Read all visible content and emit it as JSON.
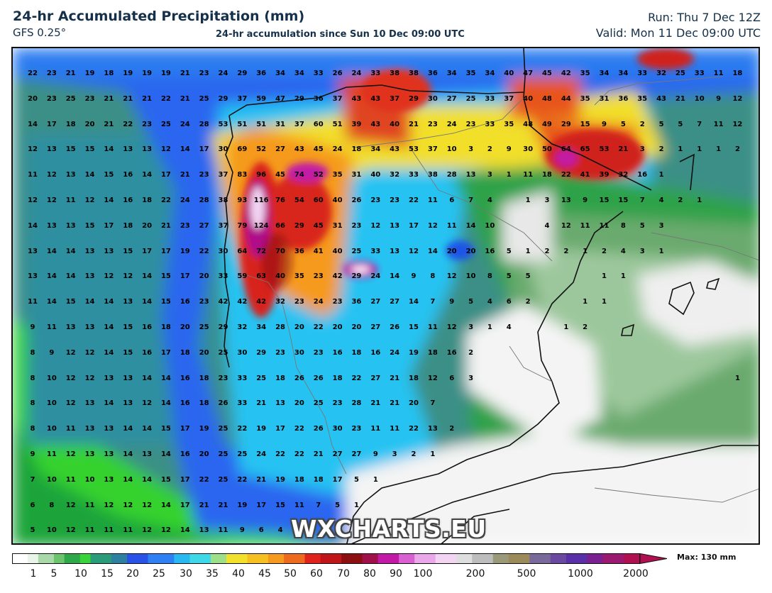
{
  "header": {
    "title": "24-hr Accumulated Precipitation (mm)",
    "model": "GFS 0.25°",
    "subtitle": "24-hr accumulation since Sun 10 Dec 09:00 UTC",
    "run": "Run: Thu 7 Dec 12Z",
    "valid": "Valid: Mon 11 Dec 09:00 UTC"
  },
  "watermark": "WXCHARTS.EU",
  "legend": {
    "ticks": [
      "1",
      "5",
      "10",
      "15",
      "20",
      "25",
      "30",
      "35",
      "40",
      "45",
      "50",
      "60",
      "70",
      "80",
      "90",
      "100",
      "200",
      "500",
      "1000",
      "2000"
    ],
    "max_label": "Max: 130 mm"
  },
  "colors": {
    "sea_low": "#1b9e43",
    "sea_green": "#3fdc2f",
    "teal": "#3b8c8a",
    "blue": "#2b6cf0",
    "cyan": "#27c2f5",
    "yellow": "#f2e12b",
    "orange": "#f59a1f",
    "red": "#e0231c",
    "darkred": "#8c0f12",
    "magenta": "#c21aa6",
    "lightpurple": "#f3d4f3",
    "land_dry": "#f4f4f4",
    "coast": "#111111",
    "border": "#888888"
  },
  "grid_values": {
    "columns": 38,
    "rows": [
      [
        "22",
        "23",
        "21",
        "19",
        "18",
        "19",
        "19",
        "19",
        "21",
        "23",
        "24",
        "29",
        "36",
        "34",
        "34",
        "33",
        "26",
        "24",
        "33",
        "38",
        "38",
        "36",
        "34",
        "35",
        "34",
        "40",
        "47",
        "45",
        "42",
        "35",
        "34",
        "34",
        "33",
        "32",
        "25",
        "33",
        "11",
        "18"
      ],
      [
        "20",
        "23",
        "25",
        "23",
        "21",
        "21",
        "21",
        "22",
        "21",
        "25",
        "29",
        "37",
        "59",
        "47",
        "29",
        "36",
        "37",
        "43",
        "43",
        "37",
        "29",
        "30",
        "27",
        "25",
        "33",
        "37",
        "40",
        "48",
        "44",
        "35",
        "31",
        "36",
        "35",
        "43",
        "21",
        "10",
        "9",
        "12"
      ],
      [
        "14",
        "17",
        "18",
        "20",
        "21",
        "22",
        "23",
        "25",
        "24",
        "28",
        "53",
        "51",
        "51",
        "31",
        "37",
        "60",
        "51",
        "39",
        "43",
        "40",
        "21",
        "23",
        "24",
        "23",
        "33",
        "35",
        "48",
        "49",
        "29",
        "15",
        "9",
        "5",
        "2",
        "5",
        "5",
        "7",
        "11",
        "12"
      ],
      [
        "12",
        "13",
        "15",
        "15",
        "14",
        "13",
        "13",
        "12",
        "14",
        "17",
        "30",
        "69",
        "52",
        "27",
        "43",
        "45",
        "24",
        "18",
        "34",
        "43",
        "53",
        "37",
        "10",
        "3",
        "2",
        "9",
        "30",
        "50",
        "64",
        "65",
        "53",
        "21",
        "3",
        "2",
        "1",
        "1",
        "1",
        "2"
      ],
      [
        "11",
        "12",
        "13",
        "14",
        "15",
        "16",
        "14",
        "17",
        "21",
        "23",
        "37",
        "83",
        "96",
        "45",
        "74",
        "52",
        "35",
        "31",
        "40",
        "32",
        "33",
        "38",
        "28",
        "13",
        "3",
        "1",
        "11",
        "18",
        "22",
        "41",
        "39",
        "32",
        "16",
        "1",
        "",
        "",
        "",
        ""
      ],
      [
        "12",
        "12",
        "11",
        "12",
        "14",
        "16",
        "18",
        "22",
        "24",
        "28",
        "38",
        "93",
        "116",
        "76",
        "54",
        "60",
        "40",
        "26",
        "23",
        "23",
        "22",
        "11",
        "6",
        "7",
        "4",
        "",
        "1",
        "3",
        "13",
        "9",
        "15",
        "15",
        "7",
        "4",
        "2",
        "1",
        "",
        ""
      ],
      [
        "14",
        "13",
        "13",
        "15",
        "17",
        "18",
        "20",
        "21",
        "23",
        "27",
        "37",
        "79",
        "124",
        "66",
        "29",
        "45",
        "31",
        "23",
        "12",
        "13",
        "17",
        "12",
        "11",
        "14",
        "10",
        "",
        "",
        "4",
        "12",
        "11",
        "11",
        "8",
        "5",
        "3",
        "",
        "",
        "",
        ""
      ],
      [
        "13",
        "14",
        "14",
        "13",
        "13",
        "15",
        "17",
        "17",
        "19",
        "22",
        "30",
        "64",
        "72",
        "70",
        "36",
        "41",
        "40",
        "25",
        "33",
        "13",
        "12",
        "14",
        "20",
        "20",
        "16",
        "5",
        "1",
        "2",
        "2",
        "1",
        "2",
        "4",
        "3",
        "1",
        "",
        "",
        "",
        ""
      ],
      [
        "13",
        "14",
        "14",
        "13",
        "12",
        "12",
        "14",
        "15",
        "17",
        "20",
        "33",
        "59",
        "63",
        "40",
        "35",
        "23",
        "42",
        "29",
        "24",
        "14",
        "9",
        "8",
        "12",
        "10",
        "8",
        "5",
        "5",
        "",
        "",
        "",
        "1",
        "1",
        "",
        "",
        "",
        "",
        "",
        ""
      ],
      [
        "11",
        "14",
        "15",
        "14",
        "14",
        "13",
        "14",
        "15",
        "16",
        "23",
        "42",
        "42",
        "42",
        "32",
        "23",
        "24",
        "23",
        "36",
        "27",
        "27",
        "14",
        "7",
        "9",
        "5",
        "4",
        "6",
        "2",
        "",
        "",
        "1",
        "1",
        "",
        "",
        "",
        "",
        "",
        "",
        ""
      ],
      [
        "9",
        "11",
        "13",
        "13",
        "14",
        "15",
        "16",
        "18",
        "20",
        "25",
        "29",
        "32",
        "34",
        "28",
        "20",
        "22",
        "20",
        "20",
        "27",
        "26",
        "15",
        "11",
        "12",
        "3",
        "1",
        "4",
        "",
        "",
        "1",
        "2",
        "",
        "",
        "",
        "",
        "",
        "",
        "",
        ""
      ],
      [
        "8",
        "9",
        "12",
        "12",
        "14",
        "15",
        "16",
        "17",
        "18",
        "20",
        "25",
        "30",
        "29",
        "23",
        "30",
        "23",
        "16",
        "18",
        "16",
        "24",
        "19",
        "18",
        "16",
        "2",
        "",
        "",
        "",
        "",
        "",
        "",
        "",
        "",
        "",
        "",
        "",
        "",
        "",
        ""
      ],
      [
        "8",
        "10",
        "12",
        "12",
        "13",
        "13",
        "14",
        "14",
        "16",
        "18",
        "23",
        "33",
        "25",
        "18",
        "26",
        "26",
        "18",
        "22",
        "27",
        "21",
        "18",
        "12",
        "6",
        "3",
        "",
        "",
        "",
        "",
        "",
        "",
        "",
        "",
        "",
        "",
        "",
        "",
        "",
        "1"
      ],
      [
        "8",
        "10",
        "12",
        "13",
        "14",
        "13",
        "12",
        "14",
        "16",
        "18",
        "26",
        "33",
        "21",
        "13",
        "20",
        "25",
        "23",
        "28",
        "21",
        "21",
        "20",
        "7",
        "",
        "",
        "",
        "",
        "",
        "",
        "",
        "",
        "",
        "",
        "",
        "",
        "",
        "",
        "",
        ""
      ],
      [
        "8",
        "10",
        "11",
        "13",
        "13",
        "14",
        "14",
        "15",
        "17",
        "19",
        "25",
        "22",
        "19",
        "17",
        "22",
        "26",
        "30",
        "23",
        "11",
        "11",
        "22",
        "13",
        "2",
        "",
        "",
        "",
        "",
        "",
        "",
        "",
        "",
        "",
        "",
        "",
        "",
        "",
        "",
        ""
      ],
      [
        "9",
        "11",
        "12",
        "13",
        "13",
        "14",
        "13",
        "14",
        "16",
        "20",
        "25",
        "25",
        "24",
        "22",
        "22",
        "21",
        "27",
        "27",
        "9",
        "3",
        "2",
        "1",
        "",
        "",
        "",
        "",
        "",
        "",
        "",
        "",
        "",
        "",
        "",
        "",
        "",
        "",
        "",
        ""
      ],
      [
        "7",
        "10",
        "11",
        "10",
        "13",
        "14",
        "14",
        "15",
        "17",
        "22",
        "25",
        "22",
        "21",
        "19",
        "18",
        "18",
        "17",
        "5",
        "1",
        "",
        "",
        "",
        "",
        "",
        "",
        "",
        "",
        "",
        "",
        "",
        "",
        "",
        "",
        "",
        "",
        "",
        "",
        ""
      ],
      [
        "6",
        "8",
        "12",
        "11",
        "12",
        "12",
        "12",
        "14",
        "17",
        "21",
        "21",
        "19",
        "17",
        "15",
        "11",
        "7",
        "5",
        "1",
        "",
        "",
        "",
        "",
        "",
        "",
        "",
        "",
        "",
        "",
        "",
        "",
        "",
        "",
        "",
        "",
        "",
        "",
        "",
        ""
      ],
      [
        "5",
        "10",
        "12",
        "11",
        "11",
        "11",
        "12",
        "12",
        "14",
        "13",
        "11",
        "9",
        "6",
        "4",
        "",
        "",
        "",
        "",
        "",
        "",
        "",
        "",
        "",
        "",
        "",
        "",
        "",
        "",
        "",
        "",
        "",
        "",
        "",
        "",
        "",
        "",
        "",
        ""
      ]
    ]
  }
}
